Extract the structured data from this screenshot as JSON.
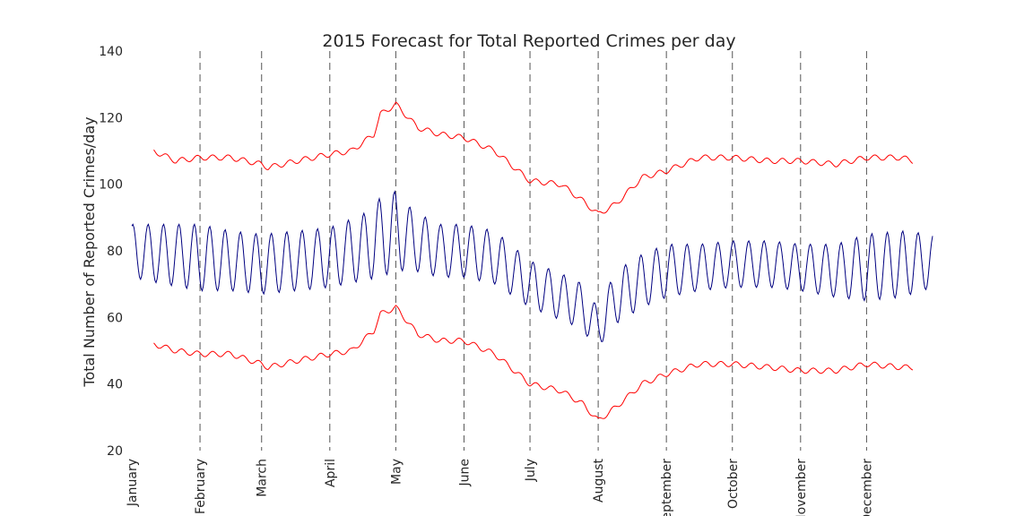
{
  "chart_data": {
    "type": "line",
    "title": "2015 Forecast for Total Reported Crimes per day",
    "xlabel": "",
    "ylabel": "Total Number of Reported Crimes/day",
    "ylim": [
      20,
      140
    ],
    "yticks": [
      20,
      40,
      60,
      80,
      100,
      120,
      140
    ],
    "xlim": [
      0,
      364
    ],
    "month_ticks": [
      {
        "label": "January",
        "day": 0
      },
      {
        "label": "February",
        "day": 31
      },
      {
        "label": "March",
        "day": 59
      },
      {
        "label": "April",
        "day": 90
      },
      {
        "label": "May",
        "day": 120
      },
      {
        "label": "June",
        "day": 151
      },
      {
        "label": "July",
        "day": 181
      },
      {
        "label": "August",
        "day": 212
      },
      {
        "label": "September",
        "day": 243
      },
      {
        "label": "October",
        "day": 273
      },
      {
        "label": "November",
        "day": 304
      },
      {
        "label": "December",
        "day": 334
      }
    ],
    "grid": "dashed vertical lines at month boundaries (February through December)",
    "series": [
      {
        "role": "forecast",
        "color": "#000080",
        "x": [
          0,
          14,
          31,
          45,
          59,
          75,
          90,
          105,
          113,
          120,
          128,
          140,
          151,
          165,
          181,
          192,
          203,
          212,
          220,
          232,
          243,
          258,
          273,
          290,
          304,
          320,
          334,
          350,
          364
        ],
        "values": [
          80,
          79,
          78,
          77,
          76,
          77,
          78,
          81,
          84,
          86,
          83,
          80,
          80,
          78,
          70,
          67,
          64,
          57,
          66,
          71,
          74,
          75,
          76,
          76,
          75,
          74,
          75,
          76,
          77
        ],
        "weekly_amplitude": [
          8,
          9,
          10,
          9,
          9,
          9,
          9,
          10,
          12,
          12,
          9,
          8,
          8,
          8,
          7,
          7,
          7,
          6,
          8,
          8,
          8,
          7,
          7,
          7,
          7,
          8,
          10,
          10,
          8
        ]
      },
      {
        "role": "upper_bound",
        "color": "#ff0000",
        "x": [
          10,
          20,
          31,
          45,
          59,
          62,
          75,
          90,
          100,
          110,
          113,
          120,
          130,
          140,
          151,
          165,
          181,
          195,
          205,
          212,
          220,
          232,
          243,
          258,
          273,
          290,
          304,
          320,
          334,
          350,
          355
        ],
        "values": [
          110,
          107,
          108,
          108,
          106,
          105,
          107,
          109,
          110,
          115,
          121,
          124,
          117,
          115,
          114,
          110,
          101,
          100,
          95,
          91,
          94,
          102,
          104,
          108,
          108,
          107,
          107,
          106,
          108,
          108,
          107
        ]
      },
      {
        "role": "lower_bound",
        "color": "#ff0000",
        "x": [
          10,
          20,
          31,
          45,
          59,
          62,
          75,
          90,
          100,
          110,
          113,
          120,
          130,
          140,
          151,
          165,
          181,
          195,
          205,
          212,
          220,
          232,
          243,
          258,
          273,
          290,
          304,
          320,
          334,
          350,
          355
        ],
        "values": [
          52,
          50,
          49,
          49,
          46,
          45,
          47,
          49,
          50,
          56,
          61,
          63,
          55,
          53,
          53,
          49,
          40,
          38,
          34,
          29,
          33,
          40,
          43,
          46,
          46,
          45,
          44,
          44,
          46,
          45,
          45
        ]
      }
    ]
  }
}
